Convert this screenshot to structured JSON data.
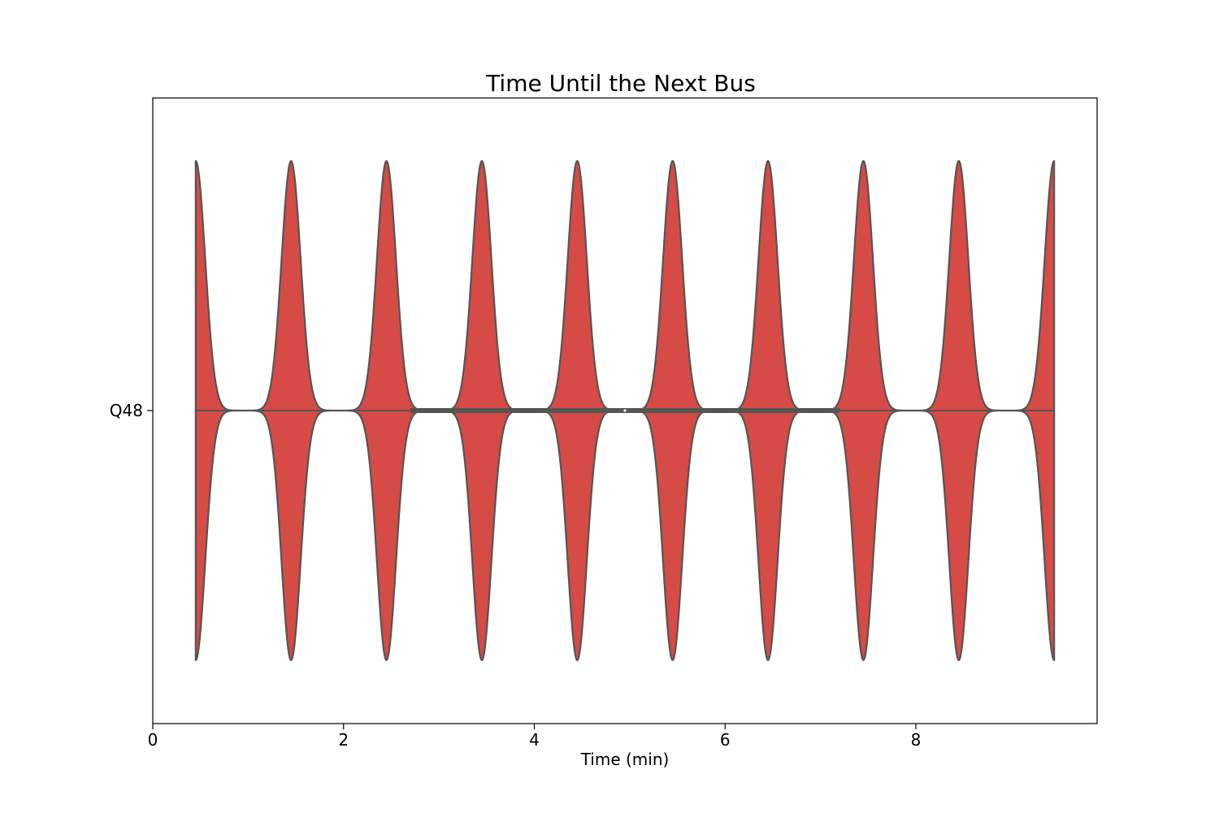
{
  "chart_data": {
    "type": "violin",
    "orientation": "horizontal",
    "title": "Time Until the Next Bus",
    "xlabel": "Time (min)",
    "ylabel": "",
    "xlim": [
      0,
      9.9
    ],
    "xticks": [
      0,
      2,
      4,
      6,
      8
    ],
    "xtick_labels": [
      "0",
      "2",
      "4",
      "6",
      "8"
    ],
    "categories": [
      "Q48"
    ],
    "grid": false,
    "legend": "none",
    "series": [
      {
        "category": "Q48",
        "data_min": 0.45,
        "data_max": 9.45,
        "density_peaks": [
          0.45,
          1.45,
          2.45,
          3.45,
          4.45,
          5.45,
          6.45,
          7.45,
          8.45,
          9.45
        ],
        "peak_spread": 0.1,
        "quartile_1": 2.7,
        "median": 4.95,
        "quartile_3": 7.2,
        "fill_color": "#d64b45",
        "edge_color": "#555555",
        "median_color": "#ffffff"
      }
    ]
  }
}
